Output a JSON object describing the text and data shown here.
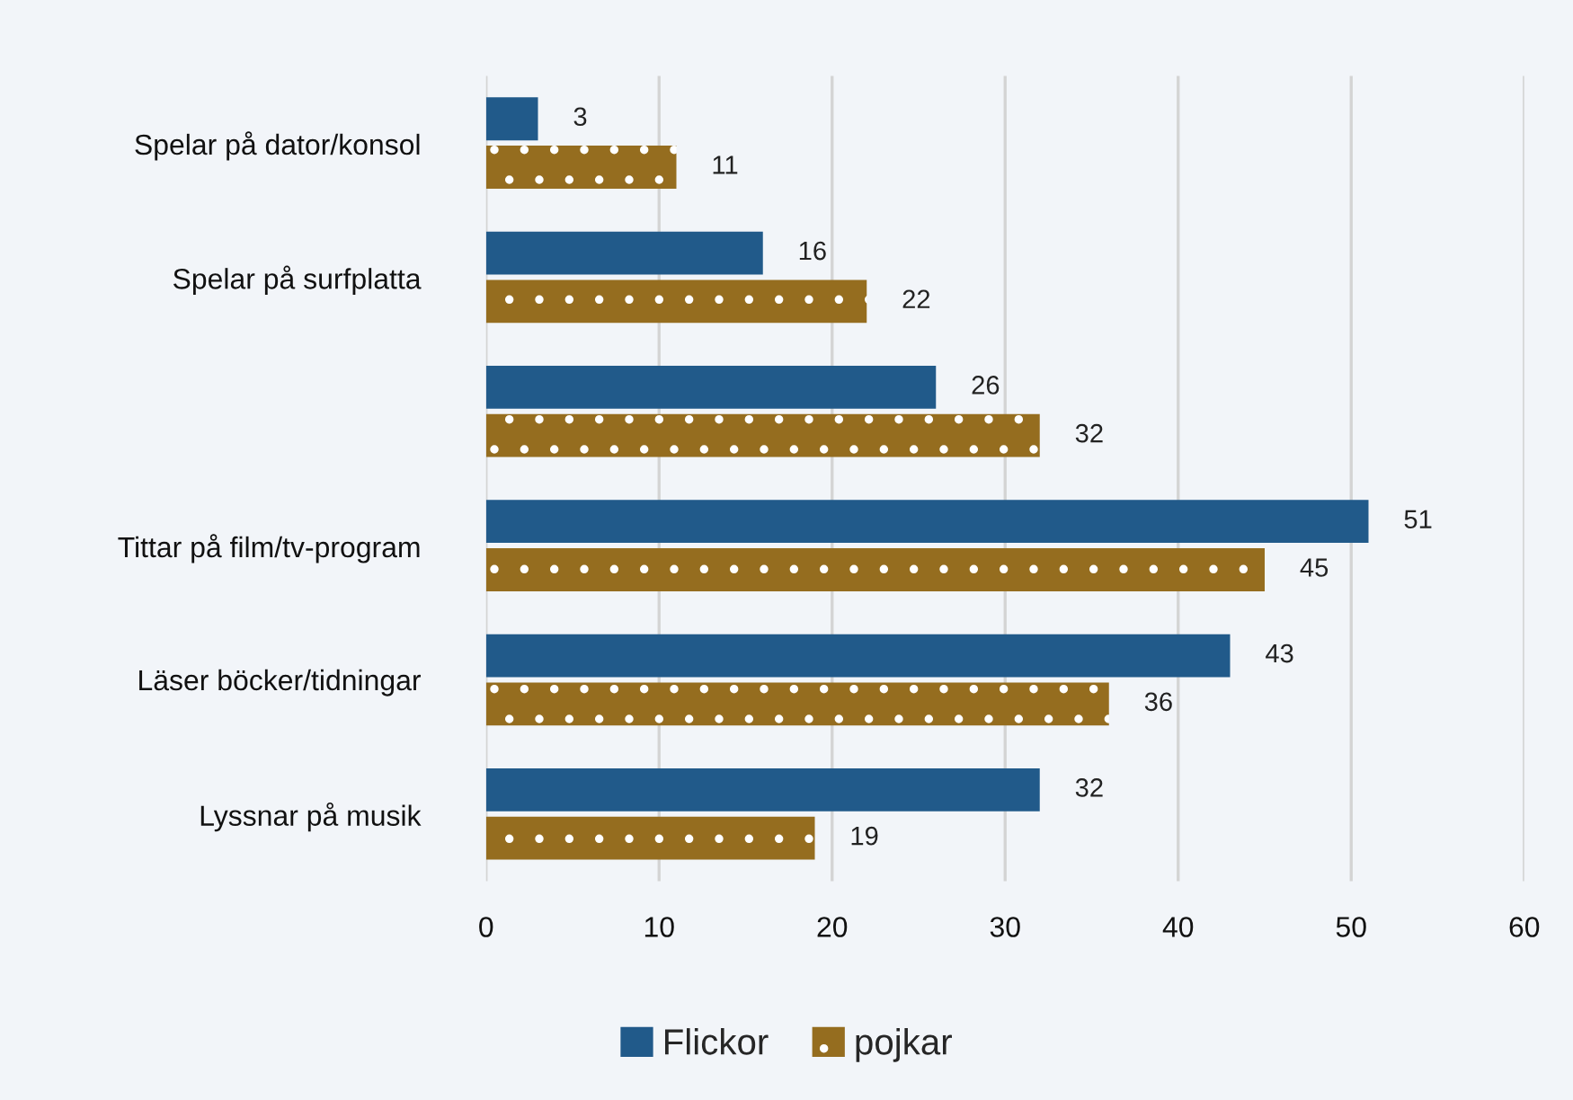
{
  "chart_data": {
    "type": "bar",
    "orientation": "horizontal",
    "categories": [
      "Spelar på dator/konsol",
      "Spelar på surfplatta",
      null,
      "Tittar på film/tv-program",
      "Läser böcker/tidningar",
      "Lyssnar på musik"
    ],
    "series": [
      {
        "name": "Flickor",
        "color": "#215a8a",
        "values": [
          3,
          16,
          26,
          51,
          43,
          32
        ]
      },
      {
        "name": "pojkar",
        "color": "#956d1f",
        "values": [
          11,
          22,
          32,
          45,
          36,
          19
        ]
      }
    ],
    "xlim": [
      0,
      60
    ],
    "xticks": [
      0,
      10,
      20,
      30,
      40,
      50,
      60
    ],
    "grid": "x",
    "legend": "bottom",
    "data_labels": true
  }
}
